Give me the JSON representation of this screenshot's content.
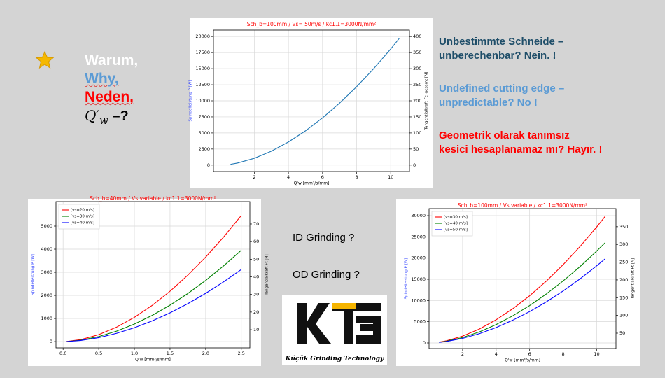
{
  "left_text": {
    "lines": [
      "Warum,",
      "Why,",
      "Neden,"
    ],
    "formula": {
      "symbol": "Q′",
      "subscript": "w",
      "suffix": "–?"
    }
  },
  "right_text": {
    "german": [
      "Unbestimmte Schneide –",
      "unberechenbar? Nein.  !"
    ],
    "english": [
      "Undefined cutting edge –",
      "unpredictable? No !"
    ],
    "turkish": [
      "Geometrik olarak tanımsız",
      "kesici  hesaplanamaz mı? Hayır.  !"
    ]
  },
  "middle_text": {
    "questions": [
      "ID Grinding ?",
      "OD Grinding ?"
    ],
    "logo_caption": "Küçük Grinding Technology"
  },
  "chart_data": [
    {
      "type": "line",
      "title": "Sch_b=100mm / Vs= 50m/s / kc1.1=3000N/mm²",
      "x_label": "Q'w [mm³/s/mm]",
      "y_label": "Spindelleistung P [W]",
      "y2_label": "Tangentialkraft Fc_gesamt [N]",
      "x": [
        0.6,
        1,
        2,
        3,
        4,
        5,
        6,
        7,
        8,
        9,
        10,
        10.5
      ],
      "series": [
        {
          "color": "#1f77b4",
          "values": [
            128,
            314,
            1063,
            2170,
            3600,
            5330,
            7350,
            9640,
            12190,
            15000,
            18060,
            19700
          ]
        }
      ],
      "xlim": [
        -0.4,
        11.1
      ],
      "xticks": [
        2,
        4,
        6,
        8,
        10
      ],
      "ylim": [
        -1000,
        21000
      ],
      "yticks": [
        0,
        2500,
        5000,
        7500,
        10000,
        12500,
        15000,
        17500,
        20000
      ],
      "y2lim": [
        -20,
        420
      ],
      "y2ticks": [
        0,
        50,
        100,
        150,
        200,
        250,
        300,
        350,
        400
      ],
      "grid": true
    },
    {
      "type": "line",
      "title": "Sch_b=40mm / Vs variable / kc1.1=3000N/mm²",
      "x_label": "Q'w [mm³/s/mm]",
      "y_label": "Spindelleistung P [W]",
      "y2_label": "Tangentialkraft Ft [N]",
      "x": [
        0.05,
        0.25,
        0.5,
        0.75,
        1,
        1.25,
        1.5,
        1.75,
        2,
        2.25,
        2.5
      ],
      "series": [
        {
          "name": "[vs=20 m/s]",
          "color": "#ff0000",
          "values": [
            5,
            87,
            301,
            626,
            1050,
            1569,
            2179,
            2875,
            3656,
            4520,
            5460
          ]
        },
        {
          "name": "[vs=30 m/s]",
          "color": "#008000",
          "values": [
            3,
            63,
            218,
            453,
            760,
            1135,
            1577,
            2081,
            2646,
            3272,
            3952
          ]
        },
        {
          "name": "[vs=40 m/s]",
          "color": "#0000ff",
          "values": [
            3,
            50,
            172,
            358,
            600,
            896,
            1245,
            1643,
            2089,
            2583,
            3120
          ]
        }
      ],
      "xlim": [
        -0.1,
        2.62
      ],
      "xticks": [
        {
          "value": 0,
          "label": "0.0"
        },
        0.5,
        {
          "value": 1,
          "label": "1.0"
        },
        1.5,
        {
          "value": 2,
          "label": "2.0"
        },
        2.5
      ],
      "ylim": [
        -270,
        6060
      ],
      "yticks": [
        0,
        1000,
        2000,
        3000,
        4000,
        5000
      ],
      "y2lim": [
        -0.3,
        82.7
      ],
      "y2ticks": [
        10,
        20,
        30,
        40,
        50,
        60,
        70
      ],
      "grid": true,
      "legend": "upper left"
    },
    {
      "type": "line",
      "title": "Sch_b=100mm / Vs variable / kc1.1=3000N/mm²",
      "x_label": "Q'w [mm³/s/mm]",
      "y_label": "Spindelleistung P [W]",
      "y2_label": "Tangentialkraft Ft [N]",
      "x": [
        0.6,
        1,
        2,
        3,
        4,
        5,
        6,
        7,
        8,
        9,
        10,
        10.5
      ],
      "series": [
        {
          "name": "[vs=30 m/s]",
          "color": "#ff0000",
          "values": [
            194,
            477,
            1609,
            3278,
            5453,
            8076,
            11115,
            14572,
            18446,
            22678,
            27327,
            29800
          ]
        },
        {
          "name": "[vs=40 m/s]",
          "color": "#008000",
          "values": [
            153,
            378,
            1274,
            2596,
            4319,
            6396,
            8803,
            11540,
            14608,
            17960,
            21641,
            23600
          ]
        },
        {
          "name": "[vs=50 m/s]",
          "color": "#0000ff",
          "values": [
            129,
            317,
            1069,
            2178,
            3623,
            5366,
            7385,
            9682,
            12256,
            15068,
            18157,
            19800
          ]
        }
      ],
      "xlim": [
        0,
        11.15
      ],
      "xticks": [
        2,
        4,
        6,
        8,
        10
      ],
      "ylim": [
        -1320,
        31650
      ],
      "yticks": [
        0,
        5000,
        10000,
        15000,
        20000,
        25000,
        30000
      ],
      "y2lim": [
        6.6,
        401
      ],
      "y2ticks": [
        50,
        100,
        150,
        200,
        250,
        300,
        350
      ],
      "grid": true,
      "legend": "upper left"
    }
  ]
}
